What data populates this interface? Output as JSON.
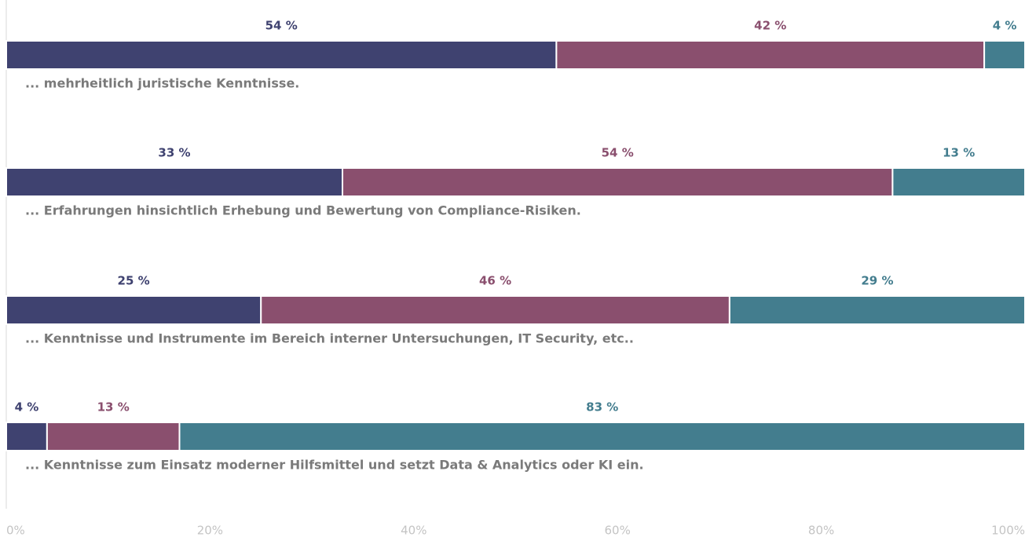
{
  "chart_data": {
    "type": "stacked-bar-horizontal",
    "categories": [
      "... mehrheitlich juristische Kenntnisse.",
      "... Erfahrungen hinsichtlich Erhebung und Bewertung von Compliance-Risiken.",
      "... Kenntnisse und Instrumente im Bereich interner Untersuchungen, IT Security, etc..",
      "... Kenntnisse zum Einsatz moderner Hilfsmittel und setzt Data & Analytics oder KI ein."
    ],
    "series": [
      {
        "color": "#3f4270",
        "values": [
          54,
          33,
          25,
          4
        ],
        "value_labels": [
          "54 %",
          "33 %",
          "25 %",
          "4 %"
        ]
      },
      {
        "color": "#8a4f6e",
        "values": [
          42,
          54,
          46,
          13
        ],
        "value_labels": [
          "42 %",
          "54 %",
          "46 %",
          "13 %"
        ]
      },
      {
        "color": "#437d8e",
        "values": [
          4,
          13,
          29,
          83
        ],
        "value_labels": [
          "4 %",
          "13 %",
          "29 %",
          "83 %"
        ]
      }
    ],
    "xlim": [
      0,
      100
    ],
    "xticks": [
      {
        "value": 0,
        "label": "0%"
      },
      {
        "value": 20,
        "label": "20%"
      },
      {
        "value": 40,
        "label": "40%"
      },
      {
        "value": 60,
        "label": "60%"
      },
      {
        "value": 80,
        "label": "80%"
      },
      {
        "value": 100,
        "label": "100%"
      }
    ]
  }
}
